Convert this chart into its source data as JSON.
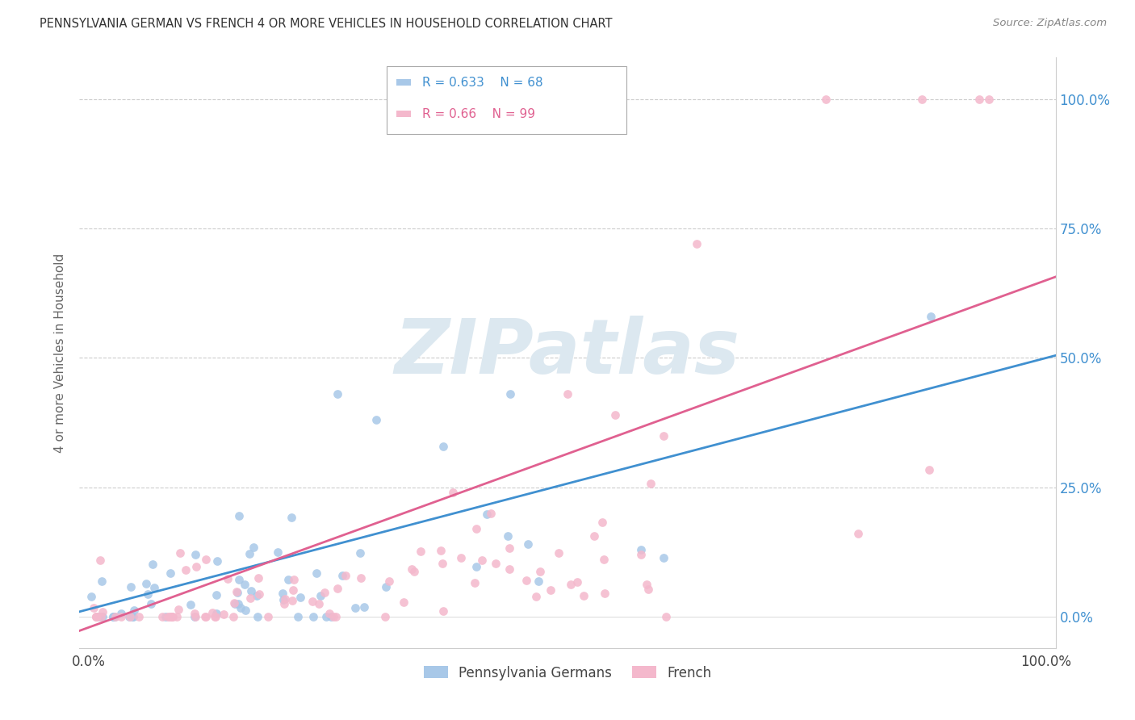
{
  "title": "PENNSYLVANIA GERMAN VS FRENCH 4 OR MORE VEHICLES IN HOUSEHOLD CORRELATION CHART",
  "source": "Source: ZipAtlas.com",
  "ylabel_label": "4 or more Vehicles in Household",
  "legend_label1": "Pennsylvania Germans",
  "legend_label2": "French",
  "R1": 0.633,
  "N1": 68,
  "R2": 0.66,
  "N2": 99,
  "color1": "#a8c8e8",
  "color2": "#f4b8cc",
  "line_color1": "#4090d0",
  "line_color2": "#e06090",
  "tick_color": "#4090d0",
  "watermark_color": "#dce8f0",
  "seed1": 12,
  "seed2": 7
}
